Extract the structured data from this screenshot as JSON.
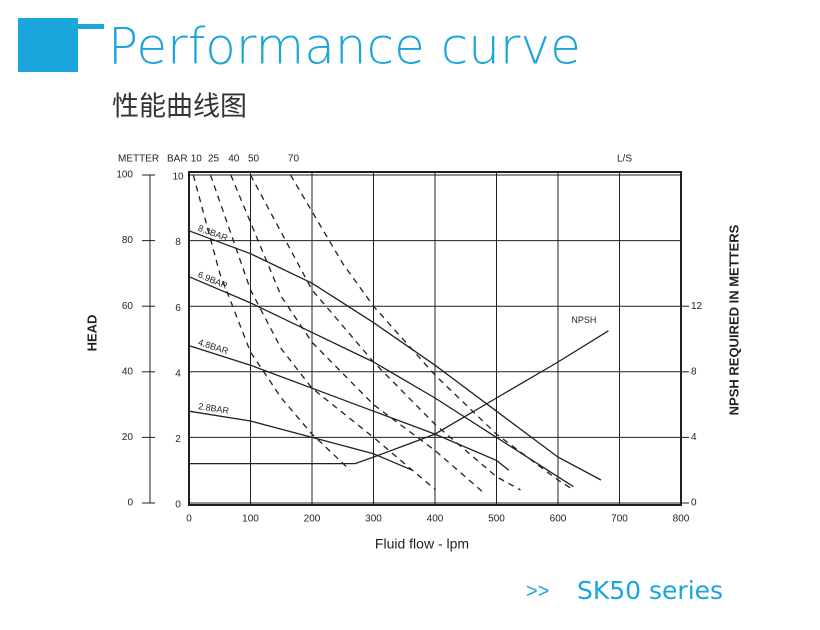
{
  "header": {
    "title": "Performance curve",
    "subtitle": "性能曲线图"
  },
  "chart_data": {
    "type": "line",
    "xlabel": "Fluid flow - lpm",
    "xlim": [
      0,
      800
    ],
    "xticks": [
      0,
      100,
      200,
      300,
      400,
      500,
      600,
      700,
      800
    ],
    "y_unit": "BAR",
    "ylim": [
      0,
      10
    ],
    "yticks": [
      0,
      2,
      4,
      6,
      8,
      10
    ],
    "head_axis": {
      "title": "HEAD",
      "unit": "METTER",
      "lim": [
        0,
        100
      ],
      "ticks": [
        0,
        20,
        40,
        60,
        80,
        100
      ]
    },
    "y2label": "NPSH REQUIRED IN METTERS",
    "y2lim": [
      0,
      20
    ],
    "y2ticks": [
      0,
      4,
      8,
      12
    ],
    "top_unit": "L/S",
    "grid": true,
    "series": [
      {
        "name": "8.3BAR",
        "color": "#231f20",
        "dashed": false,
        "x": [
          0,
          100,
          200,
          300,
          400,
          500,
          600,
          670
        ],
        "values": [
          8.3,
          7.6,
          6.7,
          5.5,
          4.2,
          2.8,
          1.4,
          0.7
        ]
      },
      {
        "name": "6.9BAR",
        "color": "#231f20",
        "dashed": false,
        "x": [
          0,
          100,
          200,
          300,
          400,
          500,
          600,
          625
        ],
        "values": [
          6.9,
          6.1,
          5.2,
          4.3,
          3.2,
          2.0,
          0.8,
          0.5
        ]
      },
      {
        "name": "4.8BAR",
        "color": "#231f20",
        "dashed": false,
        "x": [
          0,
          100,
          200,
          300,
          400,
          500,
          520
        ],
        "values": [
          4.8,
          4.2,
          3.5,
          2.8,
          2.1,
          1.3,
          1.0
        ]
      },
      {
        "name": "2.8BAR",
        "color": "#231f20",
        "dashed": false,
        "x": [
          0,
          100,
          200,
          300,
          363
        ],
        "values": [
          2.8,
          2.5,
          2.0,
          1.5,
          1.0
        ]
      },
      {
        "name": "10",
        "color": "#231f20",
        "dashed": true,
        "x": [
          7,
          50,
          100,
          150,
          200,
          262
        ],
        "values": [
          10,
          7,
          4.6,
          3.2,
          2.1,
          1.0
        ]
      },
      {
        "name": "25",
        "color": "#231f20",
        "dashed": true,
        "x": [
          35,
          100,
          150,
          200,
          300,
          401
        ],
        "values": [
          10,
          6.5,
          4.7,
          3.5,
          2.0,
          0.4
        ]
      },
      {
        "name": "40",
        "color": "#231f20",
        "dashed": true,
        "x": [
          68,
          150,
          200,
          300,
          400,
          480
        ],
        "values": [
          10,
          6.3,
          4.9,
          3.0,
          1.6,
          0.3
        ]
      },
      {
        "name": "50",
        "color": "#231f20",
        "dashed": true,
        "x": [
          100,
          200,
          300,
          400,
          500,
          539
        ],
        "values": [
          10,
          6.5,
          4.3,
          2.4,
          0.8,
          0.4
        ]
      },
      {
        "name": "70",
        "color": "#231f20",
        "dashed": true,
        "x": [
          165,
          250,
          300,
          400,
          500,
          600,
          625
        ],
        "values": [
          10,
          7.3,
          6.0,
          3.9,
          2.1,
          0.7,
          0.4
        ]
      },
      {
        "name": "NPSH",
        "color": "#231f20",
        "dashed": false,
        "axis": "y2",
        "x": [
          0,
          270,
          300,
          400,
          500,
          600,
          682
        ],
        "values": [
          2.4,
          2.4,
          2.8,
          4.2,
          6.4,
          8.6,
          10.5
        ]
      }
    ]
  },
  "footer": {
    "prefix": ">>",
    "series": "SK50 series"
  }
}
